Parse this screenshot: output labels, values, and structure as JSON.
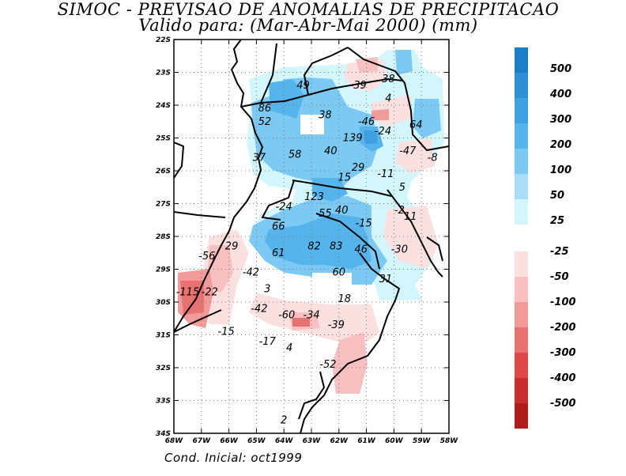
{
  "title": "SIMOC - PREVISAO DE ANOMALIAS DE PRECIPITACAO",
  "subtitle": "Valido para: (Mar-Abr-Mai 2000) (mm)",
  "footer": "Cond. Inicial: oct1999",
  "map": {
    "lat_labels": [
      "22S",
      "23S",
      "24S",
      "25S",
      "26S",
      "27S",
      "28S",
      "29S",
      "30S",
      "31S",
      "32S",
      "33S",
      "34S"
    ],
    "lon_labels": [
      "68W",
      "67W",
      "66W",
      "65W",
      "64W",
      "63W",
      "62W",
      "61W",
      "60W",
      "59W",
      "58W"
    ],
    "lon_range": [
      -68,
      -58
    ],
    "lat_range": [
      -34,
      -22
    ],
    "grid": true
  },
  "legend_positive": {
    "labels": [
      "500",
      "400",
      "300",
      "200",
      "100",
      "50",
      "25"
    ],
    "colors": [
      "#1a7ec8",
      "#2e90d6",
      "#3ea2e2",
      "#55b4ec",
      "#7ccaf3",
      "#a8dcf7",
      "#d2f6fb"
    ]
  },
  "legend_negative": {
    "labels": [
      "-25",
      "-50",
      "-100",
      "-200",
      "-300",
      "-400",
      "-500"
    ],
    "colors": [
      "#fbe0e0",
      "#f8c0c0",
      "#f09a9a",
      "#e87272",
      "#e04848",
      "#c82e2e",
      "#b01c1c"
    ]
  },
  "values": [
    {
      "text": "49",
      "lon": -63.3,
      "lat": -23.4
    },
    {
      "text": "-39",
      "lon": -61.3,
      "lat": -23.4
    },
    {
      "text": "38",
      "lon": -60.2,
      "lat": -23.2
    },
    {
      "text": "4",
      "lon": -60.2,
      "lat": -23.8
    },
    {
      "text": "86",
      "lon": -64.7,
      "lat": -24.1
    },
    {
      "text": "52",
      "lon": -64.7,
      "lat": -24.5
    },
    {
      "text": "38",
      "lon": -62.5,
      "lat": -24.3
    },
    {
      "text": "-46",
      "lon": -61.0,
      "lat": -24.5
    },
    {
      "text": "64",
      "lon": -59.2,
      "lat": -24.6
    },
    {
      "text": "-24",
      "lon": -60.4,
      "lat": -24.8
    },
    {
      "text": "139",
      "lon": -61.5,
      "lat": -25.0
    },
    {
      "text": "40",
      "lon": -62.3,
      "lat": -25.4
    },
    {
      "text": "-47",
      "lon": -59.5,
      "lat": -25.4
    },
    {
      "text": "-8",
      "lon": -58.6,
      "lat": -25.6
    },
    {
      "text": "37",
      "lon": -64.9,
      "lat": -25.6
    },
    {
      "text": "58",
      "lon": -63.6,
      "lat": -25.5
    },
    {
      "text": "29",
      "lon": -61.3,
      "lat": -25.9
    },
    {
      "text": "-11",
      "lon": -60.3,
      "lat": -26.1
    },
    {
      "text": "15",
      "lon": -61.8,
      "lat": -26.2
    },
    {
      "text": "5",
      "lon": -59.7,
      "lat": -26.5
    },
    {
      "text": "123",
      "lon": -62.9,
      "lat": -26.8
    },
    {
      "text": "-24",
      "lon": -64.0,
      "lat": -27.1
    },
    {
      "text": "40",
      "lon": -61.9,
      "lat": -27.2
    },
    {
      "text": "55",
      "lon": -62.5,
      "lat": -27.3
    },
    {
      "text": "-2",
      "lon": -59.8,
      "lat": -27.2
    },
    {
      "text": "11",
      "lon": -59.4,
      "lat": -27.4
    },
    {
      "text": "-15",
      "lon": -61.1,
      "lat": -27.6
    },
    {
      "text": "66",
      "lon": -64.2,
      "lat": -27.7
    },
    {
      "text": "29",
      "lon": -65.9,
      "lat": -28.3
    },
    {
      "text": "82",
      "lon": -62.9,
      "lat": -28.3
    },
    {
      "text": "83",
      "lon": -62.1,
      "lat": -28.3
    },
    {
      "text": "61",
      "lon": -64.2,
      "lat": -28.5
    },
    {
      "text": "-30",
      "lon": -59.8,
      "lat": -28.4
    },
    {
      "text": "46",
      "lon": -61.2,
      "lat": -28.4
    },
    {
      "text": "-56",
      "lon": -66.8,
      "lat": -28.6
    },
    {
      "text": "60",
      "lon": -62.0,
      "lat": -29.1
    },
    {
      "text": "-42",
      "lon": -65.2,
      "lat": -29.1
    },
    {
      "text": "31",
      "lon": -60.3,
      "lat": -29.3
    },
    {
      "text": "3",
      "lon": -64.6,
      "lat": -29.6
    },
    {
      "text": "-115",
      "lon": -67.5,
      "lat": -29.7
    },
    {
      "text": "-22",
      "lon": -66.7,
      "lat": -29.7
    },
    {
      "text": "18",
      "lon": -61.8,
      "lat": -29.9
    },
    {
      "text": "-42",
      "lon": -64.9,
      "lat": -30.2
    },
    {
      "text": "-60",
      "lon": -63.9,
      "lat": -30.4
    },
    {
      "text": "-34",
      "lon": -63.0,
      "lat": -30.4
    },
    {
      "text": "-39",
      "lon": -62.1,
      "lat": -30.7
    },
    {
      "text": "-15",
      "lon": -66.1,
      "lat": -30.9
    },
    {
      "text": "-17",
      "lon": -64.6,
      "lat": -31.2
    },
    {
      "text": "4",
      "lon": -63.8,
      "lat": -31.4
    },
    {
      "text": "-52",
      "lon": -62.4,
      "lat": -31.9
    },
    {
      "text": "2",
      "lon": -64.0,
      "lat": -33.6
    }
  ]
}
